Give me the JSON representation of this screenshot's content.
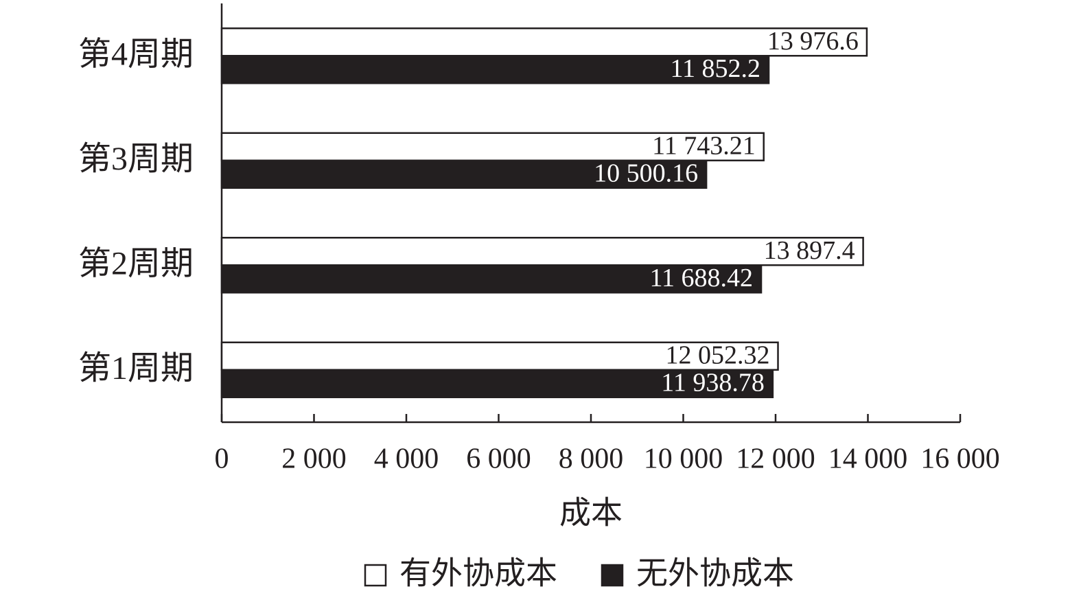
{
  "chart_data": {
    "type": "barh",
    "categories": [
      "第1周期",
      "第2周期",
      "第3周期",
      "第4周期"
    ],
    "series": [
      {
        "name": "有外协成本",
        "color": "#ffffff",
        "values": [
          12052.32,
          13897.4,
          11743.21,
          13976.6
        ],
        "value_labels": [
          "12 052.32",
          "13 897.4",
          "11 743.21",
          "13 976.6"
        ]
      },
      {
        "name": "无外协成本",
        "color": "#231f20",
        "values": [
          11938.78,
          11688.42,
          10500.16,
          11852.2
        ],
        "value_labels": [
          "11 938.78",
          "11 688.42",
          "10 500.16",
          "11 852.2"
        ]
      }
    ],
    "xlabel": "成本",
    "xlim": [
      0,
      16000
    ],
    "xticks": [
      0,
      {
        "value": 2000,
        "label": "2 000"
      },
      {
        "value": 4000,
        "label": "4 000"
      },
      {
        "value": 6000,
        "label": "6 000"
      },
      {
        "value": 8000,
        "label": "8 000"
      },
      {
        "value": 10000,
        "label": "10 000"
      },
      {
        "value": 12000,
        "label": "12 000"
      },
      {
        "value": 14000,
        "label": "14 000"
      },
      {
        "value": 16000,
        "label": "16 000"
      }
    ],
    "grid": false,
    "legend": "bottom"
  }
}
